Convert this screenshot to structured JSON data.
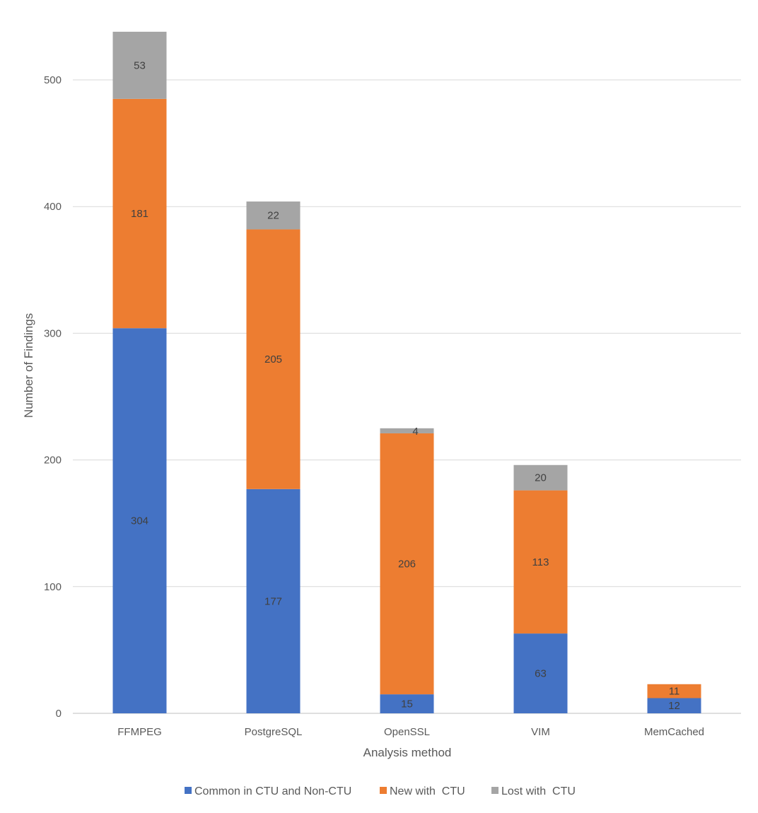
{
  "chart_data": {
    "type": "bar",
    "stacked": true,
    "title": "",
    "xlabel": "Analysis method",
    "ylabel": "Number of Findings",
    "ylim": [
      0,
      540
    ],
    "yticks": [
      0,
      100,
      200,
      300,
      400,
      500
    ],
    "grid": true,
    "legend_position": "bottom",
    "categories": [
      "FFMPEG",
      "PostgreSQL",
      "OpenSSL",
      "VIM",
      "MemCached"
    ],
    "series": [
      {
        "name": "Common in CTU and Non-CTU",
        "color": "#4472C4",
        "values": [
          304,
          177,
          15,
          63,
          12
        ]
      },
      {
        "name": "New with  CTU",
        "color": "#ED7D31",
        "values": [
          181,
          205,
          206,
          113,
          11
        ]
      },
      {
        "name": "Lost with  CTU",
        "color": "#A5A5A5",
        "values": [
          53,
          22,
          4,
          20,
          0
        ]
      }
    ],
    "data_labels": [
      [
        "304",
        "177",
        "15",
        "63",
        "12"
      ],
      [
        "181",
        "205",
        "206",
        "113",
        "11"
      ],
      [
        "53",
        "22",
        "4",
        "20",
        ""
      ]
    ]
  }
}
